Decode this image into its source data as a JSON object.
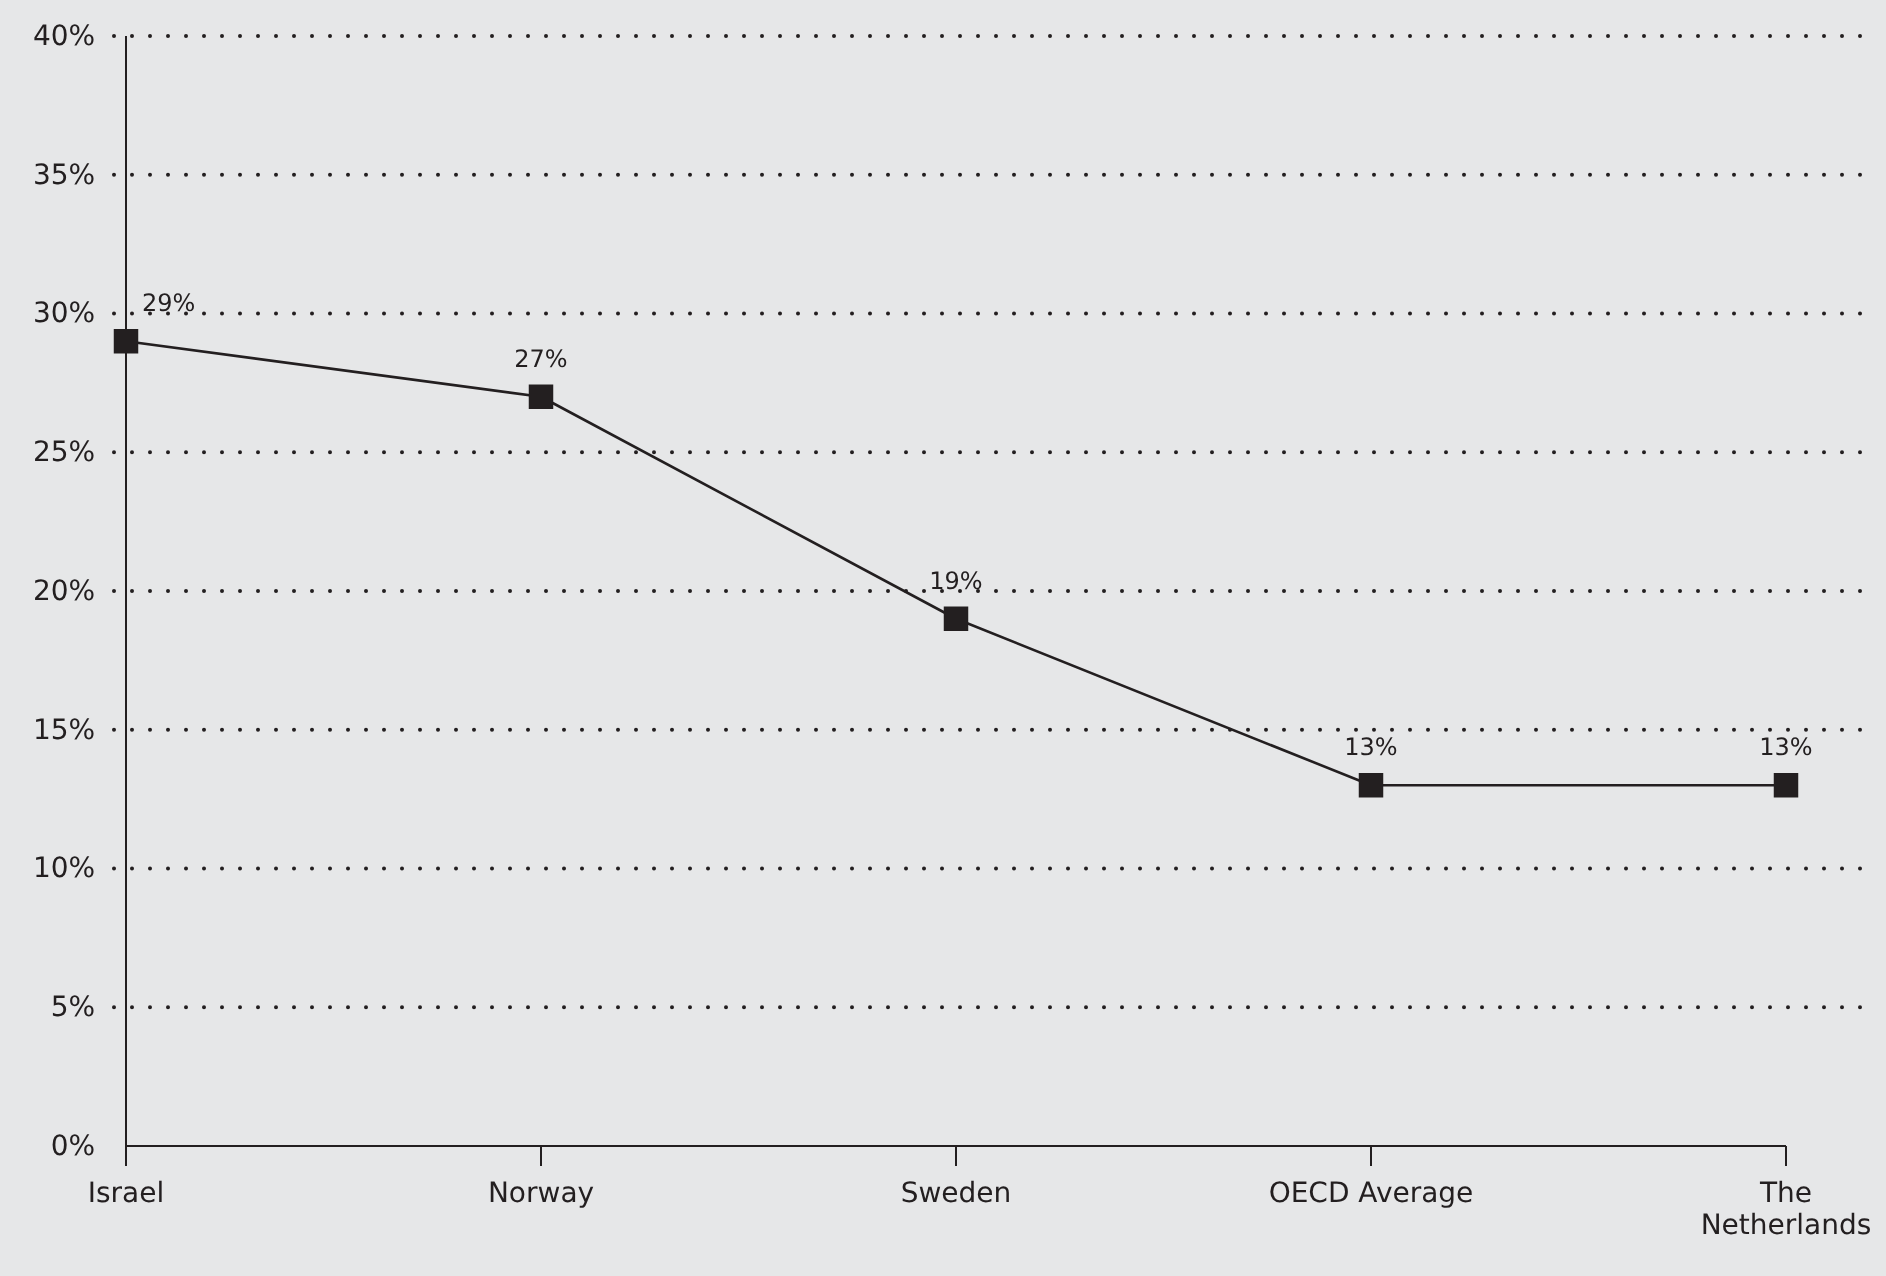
{
  "chart_data": {
    "type": "line",
    "categories": [
      "Israel",
      "Norway",
      "Sweden",
      "OECD Average",
      "The Netherlands"
    ],
    "series": [
      {
        "color": "#231f20",
        "values": [
          29,
          27,
          19,
          13,
          13
        ],
        "value_labels": [
          "29%",
          "27%",
          "19%",
          "13%",
          "13%"
        ]
      }
    ],
    "ylim": [
      0,
      40
    ],
    "yticks": [
      {
        "value": 0,
        "label": "0%"
      },
      {
        "value": 5,
        "label": "5%"
      },
      {
        "value": 10,
        "label": "10%"
      },
      {
        "value": 15,
        "label": "15%"
      },
      {
        "value": 20,
        "label": "20%"
      },
      {
        "value": 25,
        "label": "25%"
      },
      {
        "value": 30,
        "label": "30%"
      },
      {
        "value": 35,
        "label": "35%"
      },
      {
        "value": 40,
        "label": "40%"
      }
    ],
    "grid": "y",
    "marker": "square",
    "line_style": "solid"
  }
}
